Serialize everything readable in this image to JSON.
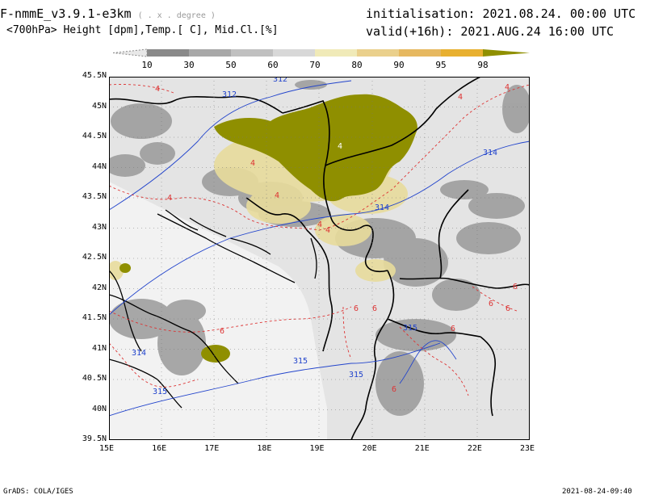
{
  "header": {
    "model": "F-nmmE_v3.9.1-e3km",
    "model_units": "( . x . degree )",
    "fields": "<700hPa> Height [dpm],Temp.[ C], Mid.Cl.[%]",
    "init_label": "initialisation:",
    "init_value": "2021.08.24.  00:00 UTC",
    "valid_label": "valid(+16h):",
    "valid_value": "2021.AUG.24  16:00 UTC"
  },
  "colorbar": {
    "levels": [
      "10",
      "30",
      "50",
      "60",
      "70",
      "80",
      "90",
      "95",
      "98"
    ],
    "colors": [
      "#e8e8e8",
      "#8a8a8a",
      "#a8a8a8",
      "#c0c0c0",
      "#d8d8d8",
      "#f0eab8",
      "#ead08c",
      "#e6b860",
      "#e8b030",
      "#8f8f00"
    ]
  },
  "map": {
    "lat_labels": [
      "45.5N",
      "45N",
      "44.5N",
      "44N",
      "43.5N",
      "43N",
      "42.5N",
      "42N",
      "41.5N",
      "41N",
      "40.5N",
      "40N",
      "39.5N"
    ],
    "lon_labels": [
      "15E",
      "16E",
      "17E",
      "18E",
      "19E",
      "20E",
      "21E",
      "22E",
      "23E"
    ],
    "height_labels": [
      "312",
      "312",
      "314",
      "314",
      "314",
      "315",
      "315",
      "315",
      "315"
    ],
    "temp_labels": [
      "4",
      "4",
      "4",
      "4",
      "4",
      "4",
      "4",
      "4",
      "4",
      "6",
      "6",
      "6",
      "6",
      "6",
      "6",
      "6",
      "6"
    ],
    "colors": {
      "land_bg": "#e4e4e4",
      "height_contour": "#2244cc",
      "temp_contour": "#dd3333",
      "cloud_olive": "#8f8f00",
      "cloud_yellow": "#e8d890"
    }
  },
  "footer": {
    "credit": "GrADS: COLA/IGES",
    "timestamp": "2021-08-24-09:40"
  }
}
